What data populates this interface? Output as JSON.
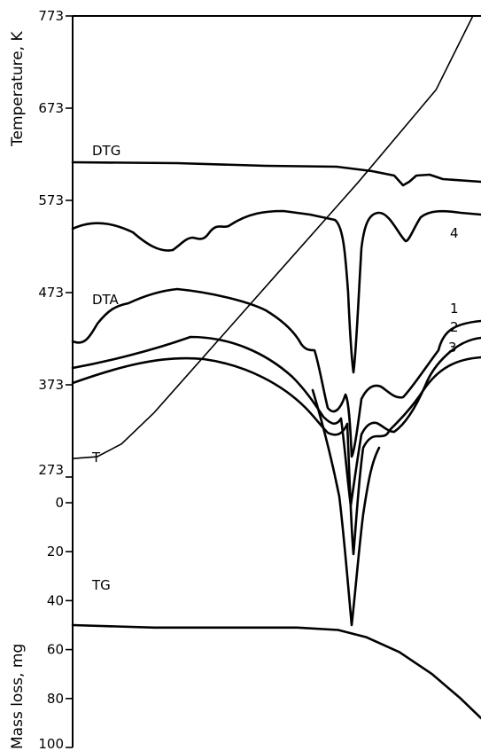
{
  "chart_data": {
    "type": "line",
    "title": "",
    "y_axis_top": {
      "label": "Temperature, K",
      "ticks": [
        "773",
        "673",
        "573",
        "473",
        "373",
        "273"
      ],
      "ylim": [
        273,
        773
      ]
    },
    "y_axis_bottom": {
      "label": "Mass loss, mg",
      "ticks": [
        "0",
        "20",
        "40",
        "60",
        "80",
        "100"
      ],
      "ylim": [
        0,
        100
      ],
      "inverted": true
    },
    "series": [
      {
        "name": "T",
        "axis": "temperature",
        "x": [
          0,
          0.06,
          0.12,
          0.2,
          0.3,
          0.5,
          0.7,
          0.89,
          0.98
        ],
        "values": [
          293,
          295,
          309,
          343,
          393,
          493,
          593,
          693,
          773
        ]
      },
      {
        "name": "TG",
        "axis": "mass",
        "x": [
          0,
          0.2,
          0.4,
          0.55,
          0.65,
          0.72,
          0.8,
          0.88,
          0.95,
          1.0
        ],
        "values": [
          50,
          51,
          51,
          51,
          52,
          55,
          61,
          70,
          80,
          88
        ]
      },
      {
        "name": "DTG",
        "axis": "relative"
      },
      {
        "name": "DTA",
        "axis": "relative"
      },
      {
        "name": "1",
        "axis": "relative"
      },
      {
        "name": "2",
        "axis": "relative"
      },
      {
        "name": "3",
        "axis": "relative"
      },
      {
        "name": "4",
        "axis": "relative"
      }
    ]
  }
}
